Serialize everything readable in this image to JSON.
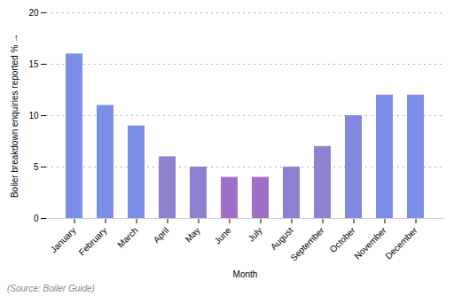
{
  "chart_data": {
    "type": "bar",
    "categories": [
      "January",
      "February",
      "March",
      "April",
      "May",
      "June",
      "July",
      "August",
      "September",
      "October",
      "November",
      "December"
    ],
    "values": [
      16,
      11,
      9,
      6,
      5,
      4,
      4,
      5,
      7,
      10,
      12,
      12
    ],
    "colors": [
      "#7B8FE8",
      "#7B8FE8",
      "#7B8FE8",
      "#9080D0",
      "#9080D0",
      "#A070C8",
      "#A070C8",
      "#9080D0",
      "#9080D0",
      "#8088E0",
      "#7B8FE8",
      "#7B8FE8"
    ],
    "xlabel": "Month",
    "ylabel": "Boiler breakdown enquiries reported %",
    "ylim": [
      0,
      20
    ],
    "yticks": [
      0,
      5,
      10,
      15,
      20
    ],
    "grid": true,
    "annotations": [
      "(Source: Boiler Guide)"
    ]
  }
}
